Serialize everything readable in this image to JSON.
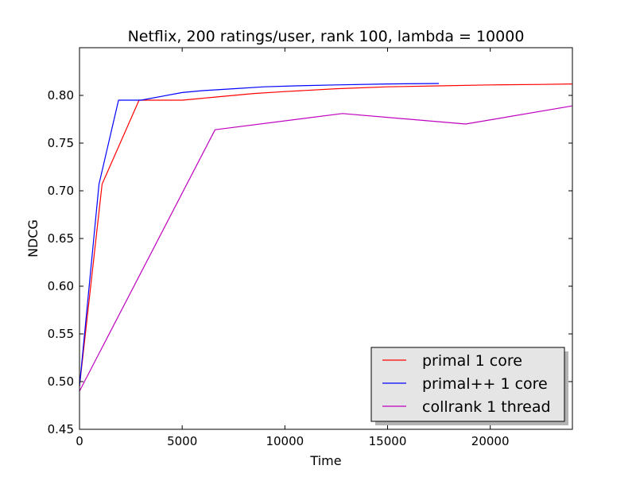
{
  "chart_data": {
    "type": "line",
    "title": "Netflix, 200 ratings/user, rank 100, lambda = 10000",
    "xlabel": "Time",
    "ylabel": "NDCG",
    "xlim": [
      0,
      24000
    ],
    "ylim": [
      0.45,
      0.85
    ],
    "xticks": [
      0,
      5000,
      10000,
      15000,
      20000
    ],
    "xtick_labels": [
      "0",
      "5000",
      "10000",
      "15000",
      "20000"
    ],
    "yticks": [
      0.45,
      0.5,
      0.55,
      0.6,
      0.65,
      0.7,
      0.75,
      0.8
    ],
    "ytick_labels": [
      "0.45",
      "0.50",
      "0.55",
      "0.60",
      "0.65",
      "0.70",
      "0.75",
      "0.80"
    ],
    "grid": false,
    "legend_position": "bottom-right",
    "series": [
      {
        "name": "primal 1 core",
        "color": "#ff0000",
        "x": [
          0,
          1100,
          2900,
          5000,
          6500,
          8500,
          10000,
          12500,
          15000,
          17500,
          20000,
          22500,
          24000
        ],
        "y": [
          0.495,
          0.707,
          0.795,
          0.795,
          0.798,
          0.802,
          0.804,
          0.807,
          0.809,
          0.81,
          0.811,
          0.8115,
          0.812
        ]
      },
      {
        "name": "primal++ 1 core",
        "color": "#0000ff",
        "x": [
          0,
          950,
          1900,
          3000,
          4000,
          5000,
          6000,
          7500,
          9000,
          10500,
          12500,
          15000,
          17500
        ],
        "y": [
          0.495,
          0.707,
          0.795,
          0.795,
          0.799,
          0.803,
          0.805,
          0.807,
          0.809,
          0.81,
          0.811,
          0.812,
          0.8125
        ]
      },
      {
        "name": "collrank 1 thread",
        "color": "#bf00bf",
        "x": [
          0,
          6600,
          12800,
          18800,
          24000
        ],
        "y": [
          0.49,
          0.764,
          0.781,
          0.77,
          0.789
        ]
      }
    ]
  }
}
